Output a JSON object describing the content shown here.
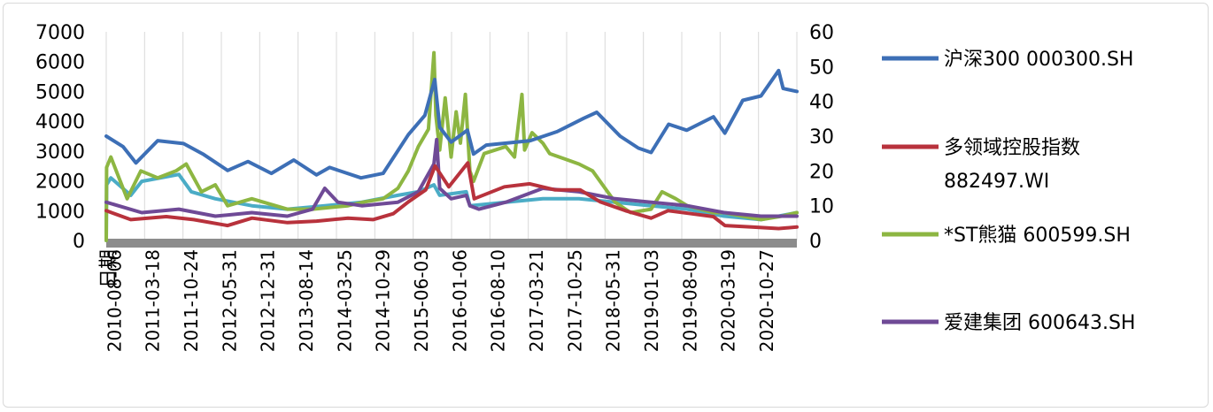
{
  "chart_data": {
    "type": "line",
    "title": "",
    "xlabel": "日期",
    "ylabel_left": "",
    "ylabel_right": "",
    "ylim_left": [
      0,
      7000
    ],
    "ylim_right": [
      0,
      60
    ],
    "yticks_left": [
      0,
      1000,
      2000,
      3000,
      4000,
      5000,
      6000,
      7000
    ],
    "yticks_right": [
      0,
      10,
      20,
      30,
      40,
      50,
      60
    ],
    "grid": "vertical",
    "legend_position": "right",
    "x_tick_labels": [
      "2010-08-06",
      "2011-03-18",
      "2011-10-24",
      "2012-05-31",
      "2012-12-31",
      "2013-08-14",
      "2014-03-25",
      "2014-10-29",
      "2015-06-03",
      "2016-01-06",
      "2016-08-10",
      "2017-03-21",
      "2017-10-25",
      "2018-05-31",
      "2019-01-03",
      "2019-08-09",
      "2020-03-19",
      "2020-10-27"
    ],
    "x_start": "2010-01-04",
    "x_end": "2021-05-31",
    "series": [
      {
        "name": "沪深300 000300.SH",
        "color": "#3d6fb6",
        "axis": "left",
        "x": [
          "2010-01-04",
          "2010-04-15",
          "2010-07-02",
          "2010-11-10",
          "2011-04-15",
          "2011-08-10",
          "2012-01-06",
          "2012-05-08",
          "2012-09-26",
          "2013-02-08",
          "2013-06-25",
          "2013-09-12",
          "2014-03-20",
          "2014-08-01",
          "2014-12-31",
          "2015-04-10",
          "2015-06-08",
          "2015-07-08",
          "2015-09-15",
          "2015-12-22",
          "2016-01-28",
          "2016-04-14",
          "2017-01-04",
          "2017-06-15",
          "2017-11-22",
          "2018-02-09",
          "2018-06-30",
          "2018-10-18",
          "2019-01-03",
          "2019-04-19",
          "2019-08-06",
          "2020-01-14",
          "2020-03-23",
          "2020-07-09",
          "2020-10-27",
          "2021-02-10",
          "2021-03-09",
          "2021-05-31"
        ],
        "values": [
          3500,
          3150,
          2600,
          3350,
          3250,
          2900,
          2350,
          2650,
          2250,
          2700,
          2200,
          2450,
          2100,
          2250,
          3550,
          4200,
          5400,
          3800,
          3300,
          3700,
          2900,
          3200,
          3350,
          3650,
          4100,
          4300,
          3500,
          3100,
          2950,
          3900,
          3700,
          4150,
          3600,
          4700,
          4850,
          5700,
          5100,
          5000
        ]
      },
      {
        "name": "多领域控股指数 882497.WI",
        "color": "#b8323c",
        "axis": "left",
        "x": [
          "2010-01-04",
          "2010-06-01",
          "2011-01-01",
          "2011-06-15",
          "2012-01-06",
          "2012-06-01",
          "2013-01-01",
          "2013-06-25",
          "2014-01-01",
          "2014-06-01",
          "2014-10-01",
          "2015-01-01",
          "2015-04-15",
          "2015-06-10",
          "2015-09-01",
          "2015-12-25",
          "2016-02-01",
          "2016-08-01",
          "2017-01-01",
          "2017-06-01",
          "2017-11-01",
          "2018-03-01",
          "2018-08-01",
          "2019-01-03",
          "2019-04-15",
          "2019-09-01",
          "2020-01-14",
          "2020-03-23",
          "2020-09-01",
          "2021-02-10",
          "2021-05-31"
        ],
        "values": [
          1000,
          700,
          800,
          700,
          500,
          750,
          600,
          650,
          750,
          700,
          900,
          1300,
          1700,
          2500,
          1800,
          2600,
          1400,
          1800,
          1900,
          1700,
          1700,
          1300,
          1000,
          750,
          1000,
          900,
          800,
          500,
          450,
          400,
          450
        ]
      },
      {
        "name": "*ST熊猫 600599.SH",
        "color": "#8db642",
        "axis": "right",
        "x": [
          "2010-01-04",
          "2010-01-06",
          "2010-02-01",
          "2010-05-10",
          "2010-08-01",
          "2010-11-10",
          "2011-03-01",
          "2011-05-01",
          "2011-08-01",
          "2011-10-24",
          "2012-01-06",
          "2012-05-31",
          "2012-12-31",
          "2013-06-01",
          "2014-01-01",
          "2014-04-01",
          "2014-08-01",
          "2014-10-29",
          "2014-12-31",
          "2015-03-01",
          "2015-05-01",
          "2015-06-03",
          "2015-06-15",
          "2015-07-08",
          "2015-08-10",
          "2015-09-15",
          "2015-10-15",
          "2015-11-10",
          "2015-12-10",
          "2016-01-06",
          "2016-01-28",
          "2016-04-01",
          "2016-08-10",
          "2016-10-01",
          "2016-11-15",
          "2016-12-01",
          "2017-01-15",
          "2017-03-21",
          "2017-05-01",
          "2017-10-25",
          "2018-01-15",
          "2018-05-31",
          "2018-09-01",
          "2019-01-03",
          "2019-03-10",
          "2019-06-01",
          "2019-08-09",
          "2020-01-14",
          "2020-03-19",
          "2020-10-27",
          "2021-03-01",
          "2021-05-31"
        ],
        "values": [
          0,
          21,
          24,
          12,
          20,
          18,
          20,
          22,
          14,
          16,
          10,
          12,
          9,
          9,
          10,
          11,
          12,
          15,
          20,
          27,
          32,
          54,
          36,
          26,
          41,
          24,
          37,
          28,
          42,
          20,
          17,
          25,
          27,
          24,
          42,
          26,
          31,
          28,
          25,
          22,
          20,
          11,
          8,
          9,
          14,
          12,
          10,
          8,
          8,
          6,
          7,
          8
        ]
      },
      {
        "name": "爱建集团 600643.SH",
        "color": "#6f4a96",
        "axis": "right",
        "x": [
          "2010-01-04",
          "2010-08-06",
          "2011-03-18",
          "2011-10-24",
          "2012-05-31",
          "2012-12-31",
          "2013-06-01",
          "2013-08-14",
          "2013-11-01",
          "2014-03-25",
          "2014-10-29",
          "2015-03-01",
          "2015-06-03",
          "2015-06-20",
          "2015-07-08",
          "2015-09-15",
          "2015-12-15",
          "2016-01-06",
          "2016-03-01",
          "2016-08-10",
          "2017-03-21",
          "2017-10-25",
          "2018-05-31",
          "2019-01-03",
          "2019-08-09",
          "2020-03-19",
          "2020-10-27",
          "2021-05-31"
        ],
        "values": [
          11,
          8,
          9,
          7,
          8,
          7,
          9,
          15,
          11,
          10,
          11,
          14,
          22,
          29,
          15,
          12,
          13,
          10,
          9,
          11,
          15,
          14,
          12,
          11,
          10,
          8,
          7,
          7
        ]
      },
      {
        "name": "",
        "color": "#4bacc6",
        "axis": "right",
        "x": [
          "2010-01-04",
          "2010-01-06",
          "2010-02-01",
          "2010-06-01",
          "2010-08-06",
          "2011-03-18",
          "2011-06-01",
          "2011-10-24",
          "2012-05-31",
          "2012-12-31",
          "2013-08-14",
          "2014-03-25",
          "2014-10-29",
          "2015-03-01",
          "2015-06-03",
          "2015-07-08",
          "2015-12-15",
          "2016-01-06",
          "2016-08-10",
          "2017-03-21",
          "2017-10-25",
          "2018-05-31",
          "2019-01-03",
          "2019-08-09",
          "2020-03-19",
          "2020-10-27",
          "2021-05-31"
        ],
        "values": [
          0,
          16,
          18,
          13,
          17,
          19,
          14,
          12,
          10,
          9,
          10,
          11,
          13,
          14,
          16,
          13,
          14,
          10,
          11,
          12,
          12,
          11,
          10,
          9,
          7,
          6,
          8
        ]
      }
    ]
  }
}
